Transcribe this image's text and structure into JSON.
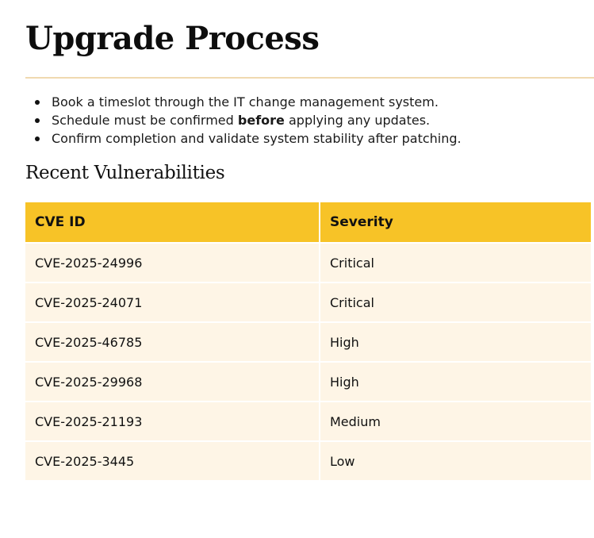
{
  "page": {
    "title": "Upgrade Process"
  },
  "steps": [
    {
      "pre": "Book a timeslot through the IT change management system.",
      "bold": "",
      "post": ""
    },
    {
      "pre": "Schedule must be confirmed ",
      "bold": "before",
      "post": " applying any updates."
    },
    {
      "pre": "Confirm completion and validate system stability after patching.",
      "bold": "",
      "post": ""
    }
  ],
  "vulnerabilities": {
    "title": "Recent Vulnerabilities",
    "headers": {
      "cve_id": "CVE ID",
      "severity": "Severity"
    },
    "rows": [
      {
        "cve_id": "CVE-2025-24996",
        "severity": "Critical"
      },
      {
        "cve_id": "CVE-2025-24071",
        "severity": "Critical"
      },
      {
        "cve_id": "CVE-2025-46785",
        "severity": "High"
      },
      {
        "cve_id": "CVE-2025-29968",
        "severity": "High"
      },
      {
        "cve_id": "CVE-2025-21193",
        "severity": "Medium"
      },
      {
        "cve_id": "CVE-2025-3445",
        "severity": "Low"
      }
    ]
  }
}
